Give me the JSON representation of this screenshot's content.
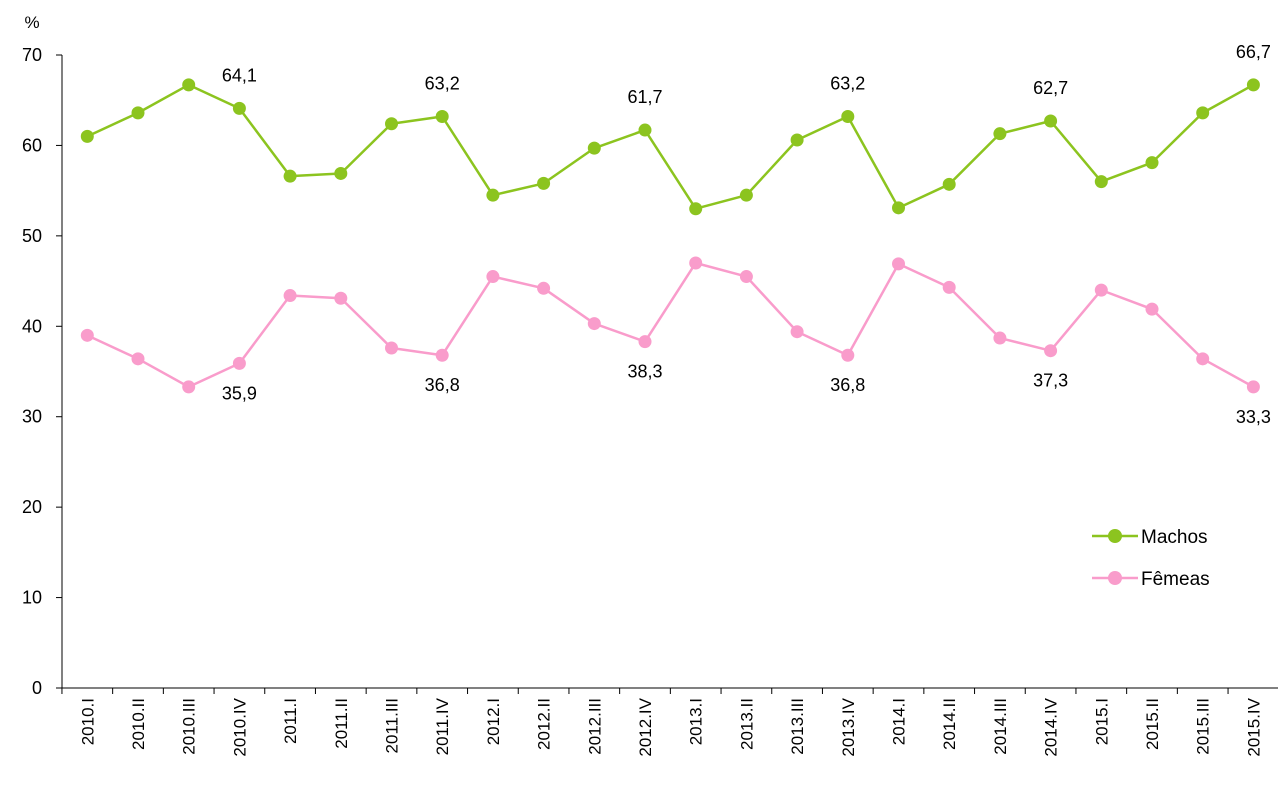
{
  "chart_data": {
    "type": "line",
    "ylabel": "%",
    "ylim": [
      0,
      70
    ],
    "yticks": [
      0,
      10,
      20,
      30,
      40,
      50,
      60,
      70
    ],
    "grid": false,
    "legend_position": "right",
    "categories": [
      "2010.I",
      "2010.II",
      "2010.III",
      "2010.IV",
      "2011.I",
      "2011.II",
      "2011.III",
      "2011.IV",
      "2012.I",
      "2012.II",
      "2012.III",
      "2012.IV",
      "2013.I",
      "2013.II",
      "2013.III",
      "2013.IV",
      "2014.I",
      "2014.II",
      "2014.III",
      "2014.IV",
      "2015.I",
      "2015.II",
      "2015.III",
      "2015.IV"
    ],
    "series": [
      {
        "name": "Machos",
        "color": "#8cc41f",
        "values": [
          61.0,
          63.6,
          66.7,
          64.1,
          56.6,
          56.9,
          62.4,
          63.2,
          54.5,
          55.8,
          59.7,
          61.7,
          53.0,
          54.5,
          60.6,
          63.2,
          53.1,
          55.7,
          61.3,
          62.7,
          56.0,
          58.1,
          63.6,
          66.7
        ],
        "data_labels": [
          {
            "index": 3,
            "text": "64,1"
          },
          {
            "index": 7,
            "text": "63,2"
          },
          {
            "index": 11,
            "text": "61,7"
          },
          {
            "index": 15,
            "text": "63,2"
          },
          {
            "index": 19,
            "text": "62,7"
          },
          {
            "index": 23,
            "text": "66,7"
          }
        ]
      },
      {
        "name": "Fêmeas",
        "color": "#f99ccb",
        "values": [
          39.0,
          36.4,
          33.3,
          35.9,
          43.4,
          43.1,
          37.6,
          36.8,
          45.5,
          44.2,
          40.3,
          38.3,
          47.0,
          45.5,
          39.4,
          36.8,
          46.9,
          44.3,
          38.7,
          37.3,
          44.0,
          41.9,
          36.4,
          33.3
        ],
        "data_labels": [
          {
            "index": 3,
            "text": "35,9"
          },
          {
            "index": 7,
            "text": "36,8"
          },
          {
            "index": 11,
            "text": "38,3"
          },
          {
            "index": 15,
            "text": "36,8"
          },
          {
            "index": 19,
            "text": "37,3"
          },
          {
            "index": 23,
            "text": "33,3"
          }
        ]
      }
    ]
  }
}
